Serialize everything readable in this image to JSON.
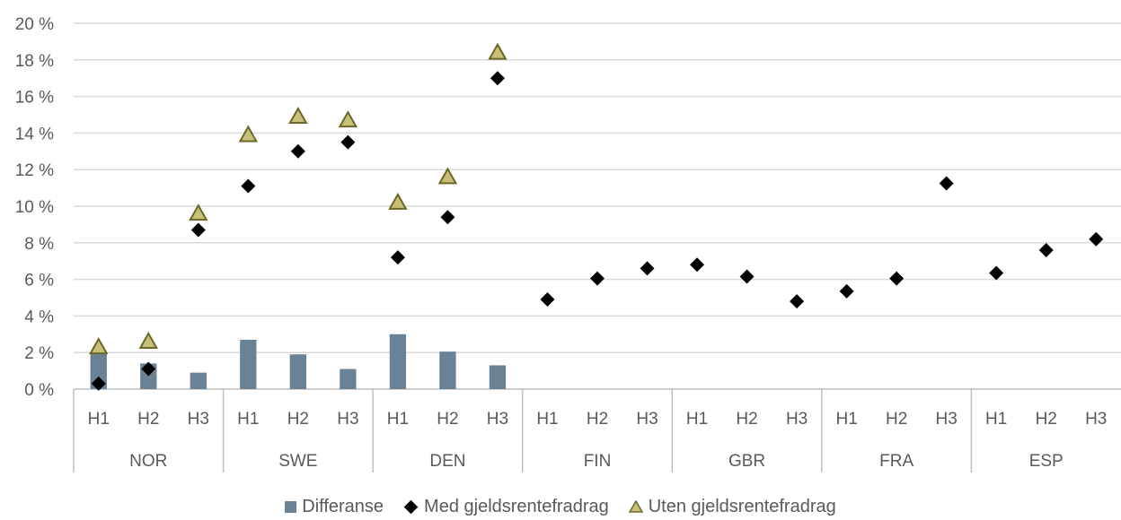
{
  "chart_data": {
    "type": "bar",
    "y_ticks": [
      "0 %",
      "2 %",
      "4 %",
      "6 %",
      "8 %",
      "10 %",
      "12 %",
      "14 %",
      "16 %",
      "18 %",
      "20 %"
    ],
    "ylim": [
      0,
      20
    ],
    "grid": true,
    "legend_position": "bottom",
    "groups": [
      {
        "name": "NOR",
        "categories": [
          "H1",
          "H2",
          "H3"
        ]
      },
      {
        "name": "SWE",
        "categories": [
          "H1",
          "H2",
          "H3"
        ]
      },
      {
        "name": "DEN",
        "categories": [
          "H1",
          "H2",
          "H3"
        ]
      },
      {
        "name": "FIN",
        "categories": [
          "H1",
          "H2",
          "H3"
        ]
      },
      {
        "name": "GBR",
        "categories": [
          "H1",
          "H2",
          "H3"
        ]
      },
      {
        "name": "FRA",
        "categories": [
          "H1",
          "H2",
          "H3"
        ]
      },
      {
        "name": "ESP",
        "categories": [
          "H1",
          "H2",
          "H3"
        ]
      }
    ],
    "series": [
      {
        "name": "Differanse",
        "type": "bar",
        "color": "#6a8295",
        "values": [
          2.0,
          1.4,
          0.9,
          2.7,
          1.9,
          1.1,
          3.0,
          2.05,
          1.3,
          null,
          null,
          null,
          null,
          null,
          null,
          null,
          null,
          null,
          null,
          null,
          null
        ]
      },
      {
        "name": "Med gjeldsrentefradrag",
        "type": "scatter",
        "marker": "diamond",
        "color": "#000000",
        "values": [
          0.3,
          1.1,
          8.7,
          11.1,
          13.0,
          13.5,
          7.2,
          9.4,
          17.0,
          4.9,
          6.05,
          6.6,
          6.8,
          6.15,
          4.8,
          5.35,
          6.05,
          11.25,
          6.35,
          7.6,
          8.2
        ]
      },
      {
        "name": "Uten gjeldsrentefradrag",
        "type": "scatter",
        "marker": "triangle",
        "color": "#c8c07a",
        "values": [
          2.3,
          2.6,
          9.6,
          13.9,
          14.9,
          14.7,
          10.2,
          11.6,
          18.4,
          null,
          null,
          null,
          null,
          null,
          null,
          null,
          null,
          null,
          null,
          null,
          null
        ]
      }
    ]
  }
}
